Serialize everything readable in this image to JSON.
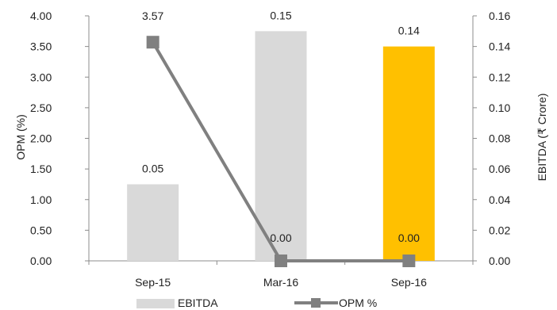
{
  "chart_data": {
    "type": "bar",
    "categories": [
      "Sep-15",
      "Mar-16",
      "Sep-16"
    ],
    "series": [
      {
        "name": "EBITDA",
        "kind": "bar",
        "axis": "right",
        "values": [
          0.05,
          0.15,
          0.14
        ],
        "labels": [
          "0.05",
          "0.15",
          "0.14"
        ],
        "colors": [
          "#d9d9d9",
          "#d9d9d9",
          "#ffc000"
        ]
      },
      {
        "name": "OPM %",
        "kind": "line",
        "axis": "left",
        "values": [
          3.57,
          0.0,
          0.0
        ],
        "labels": [
          "3.57",
          "0.00",
          "0.00"
        ],
        "color": "#808080"
      }
    ],
    "ylabel": "OPM (%)",
    "y2label": "EBITDA (₹ Crore)",
    "ylim": [
      0,
      4
    ],
    "y2lim": [
      0,
      0.16
    ],
    "yticks": [
      "0.00",
      "0.50",
      "1.00",
      "1.50",
      "2.00",
      "2.50",
      "3.00",
      "3.50",
      "4.00"
    ],
    "y2ticks": [
      "0.00",
      "0.02",
      "0.04",
      "0.06",
      "0.08",
      "0.10",
      "0.12",
      "0.14",
      "0.16"
    ],
    "grid": false,
    "legend_position": "bottom"
  }
}
